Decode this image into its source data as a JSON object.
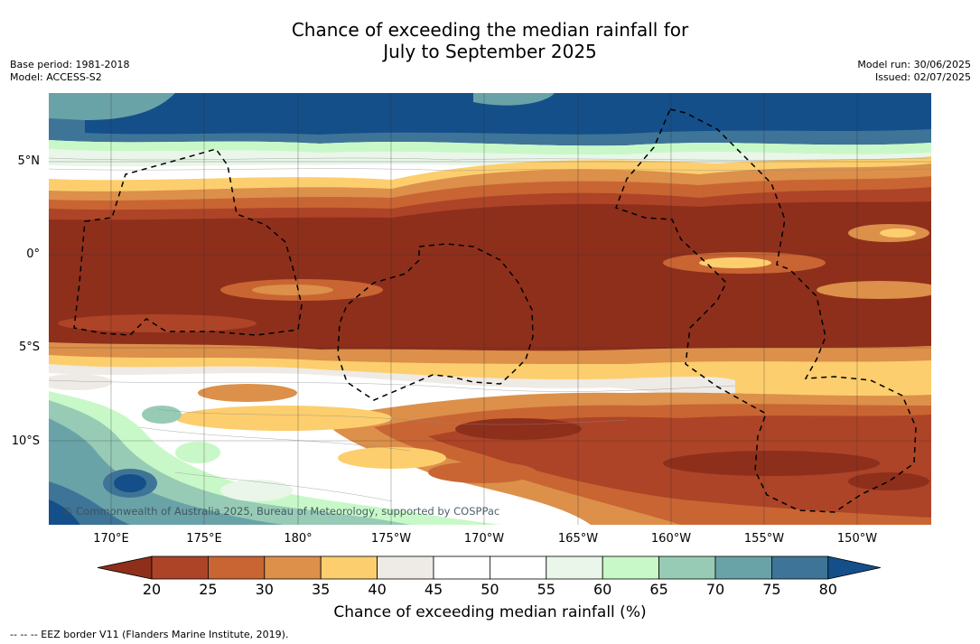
{
  "header": {
    "title_line1": "Chance of exceeding the median rainfall for",
    "title_line2": "July to September 2025",
    "base_period": "Base period: 1981-2018",
    "model": "Model: ACCESS-S2",
    "model_run": "Model run: 30/06/2025",
    "issued": "Issued: 02/07/2025"
  },
  "map": {
    "latitude_labels": [
      "5°N",
      "0°",
      "5°S",
      "10°S"
    ],
    "longitude_labels": [
      "170°E",
      "175°E",
      "180°",
      "175°W",
      "170°W",
      "165°W",
      "160°W",
      "155°W",
      "150°W"
    ],
    "copyright": "© Commonwealth of Australia 2025, Bureau of Meteorology, supported by COSPPac"
  },
  "colorbar": {
    "title": "Chance of exceeding median rainfall (%)",
    "ticks": [
      "20",
      "25",
      "30",
      "35",
      "40",
      "45",
      "50",
      "55",
      "60",
      "65",
      "70",
      "75",
      "80"
    ],
    "colors": [
      "#8e2f1c",
      "#ad4427",
      "#c96533",
      "#dc904a",
      "#fdce6d",
      "#eeeae5",
      "#ffffff",
      "#ffffff",
      "#e9f6e9",
      "#c8f8c8",
      "#97cbb5",
      "#6aa3a7",
      "#3e7497",
      "#154f8a"
    ]
  },
  "footer": {
    "eez_note": "--  --  -- EEZ border V11 (Flanders Marine Institute, 2019)."
  }
}
